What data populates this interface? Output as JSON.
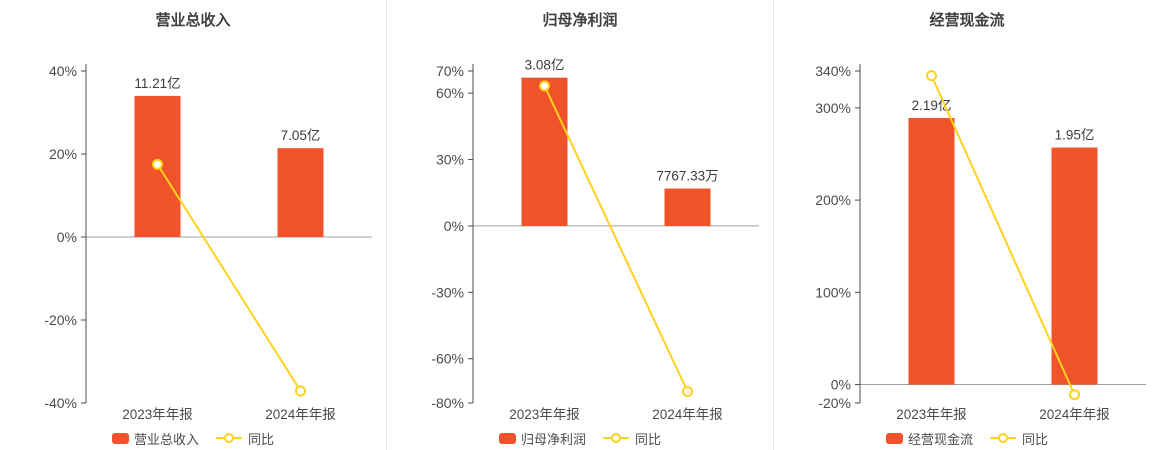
{
  "page": {
    "background": "#ffffff"
  },
  "colors": {
    "bar": "#f0532a",
    "line": "#ffd21e",
    "axis": "#4d4d4d",
    "zero_line": "#a0a0a0",
    "text": "#4c4c4c",
    "title": "#404040",
    "divider": "#e6e6e6",
    "value_label": "#3c3c3c",
    "marker_fill": "#ffffff"
  },
  "chart_data": [
    {
      "type": "bar",
      "title": "营业总收入",
      "categories": [
        "2023年年报",
        "2024年年报"
      ],
      "bar_series": {
        "name": "营业总收入",
        "display_values": [
          "11.21亿",
          "7.05亿"
        ],
        "axis_heights_pct": [
          34,
          21.4
        ]
      },
      "line_series": {
        "name": "同比",
        "values_pct": [
          17.5,
          -37.1
        ]
      },
      "ylim": [
        -40,
        40
      ],
      "ytick_values": [
        40,
        20,
        0,
        -20,
        -40
      ],
      "ytick_labels": [
        "40%",
        "20%",
        "0%",
        "-20%",
        "-40%"
      ],
      "legend_position": "bottom",
      "grid": false
    },
    {
      "type": "bar",
      "title": "归母净利润",
      "categories": [
        "2023年年报",
        "2024年年报"
      ],
      "bar_series": {
        "name": "归母净利润",
        "display_values": [
          "3.08亿",
          "7767.33万"
        ],
        "axis_heights_pct": [
          67,
          16.9
        ]
      },
      "line_series": {
        "name": "同比",
        "values_pct": [
          63.3,
          -74.8
        ]
      },
      "ylim": [
        -80,
        70
      ],
      "ytick_values": [
        70,
        60,
        30,
        0,
        -30,
        -60,
        -80
      ],
      "ytick_labels": [
        "70%",
        "60%",
        "30%",
        "0%",
        "-30%",
        "-60%",
        "-80%"
      ],
      "legend_position": "bottom",
      "grid": false
    },
    {
      "type": "bar",
      "title": "经营现金流",
      "categories": [
        "2023年年报",
        "2024年年报"
      ],
      "bar_series": {
        "name": "经营现金流",
        "display_values": [
          "2.19亿",
          "1.95亿"
        ],
        "axis_heights_pct": [
          289,
          257
        ]
      },
      "line_series": {
        "name": "同比",
        "values_pct": [
          335,
          -11
        ]
      },
      "ylim": [
        -20,
        340
      ],
      "ytick_values": [
        340,
        300,
        200,
        100,
        0,
        -20
      ],
      "ytick_labels": [
        "340%",
        "300%",
        "200%",
        "100%",
        "0%",
        "-20%"
      ],
      "legend_position": "bottom",
      "grid": false
    }
  ]
}
